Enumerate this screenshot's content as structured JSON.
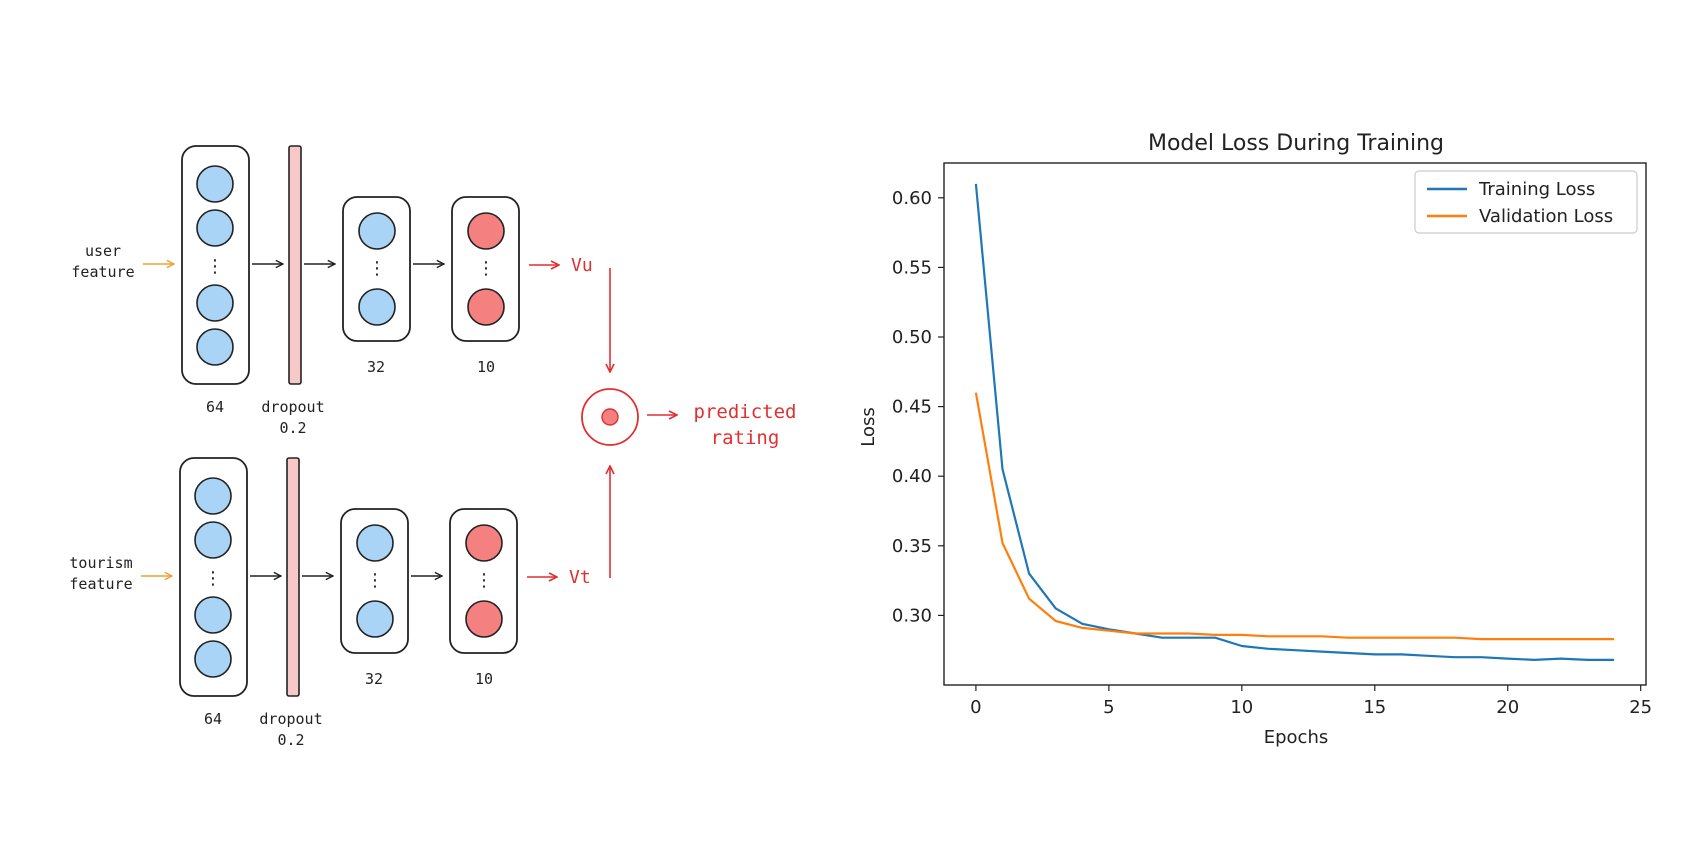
{
  "diagram": {
    "user_branch": {
      "input_label_line1": "user",
      "input_label_line2": "feature",
      "layer1_size": "64",
      "dropout_line1": "dropout",
      "dropout_line2": "0.2",
      "layer2_size": "32",
      "layer3_size": "10",
      "output_vector": "Vu"
    },
    "tourism_branch": {
      "input_label_line1": "tourism",
      "input_label_line2": "feature",
      "layer1_size": "64",
      "dropout_line1": "dropout",
      "dropout_line2": "0.2",
      "layer2_size": "32",
      "layer3_size": "10",
      "output_vector": "Vt"
    },
    "output_line1": "predicted",
    "output_line2": "rating",
    "colors": {
      "input_arrow": "#f0a030",
      "output_red": "#e03030",
      "node_blue": "#a9d4f5",
      "node_red": "#f58080",
      "dropout_fill": "#f7c8c8"
    }
  },
  "chart_data": {
    "type": "line",
    "title": "Model Loss During Training",
    "xlabel": "Epochs",
    "ylabel": "Loss",
    "xlim": [
      -1.2,
      25.2
    ],
    "ylim": [
      0.25,
      0.625
    ],
    "xticks": [
      0,
      5,
      10,
      15,
      20,
      25
    ],
    "yticks": [
      0.3,
      0.35,
      0.4,
      0.45,
      0.5,
      0.55,
      0.6
    ],
    "ytick_labels": [
      "0.30",
      "0.35",
      "0.40",
      "0.45",
      "0.50",
      "0.55",
      "0.60"
    ],
    "legend_position": "top-right",
    "grid": false,
    "x": [
      0,
      1,
      2,
      3,
      4,
      5,
      6,
      7,
      8,
      9,
      10,
      11,
      12,
      13,
      14,
      15,
      16,
      17,
      18,
      19,
      20,
      21,
      22,
      23,
      24
    ],
    "series": [
      {
        "name": "Training Loss",
        "color": "#1f77b4",
        "values": [
          0.61,
          0.405,
          0.33,
          0.305,
          0.294,
          0.29,
          0.287,
          0.284,
          0.284,
          0.284,
          0.278,
          0.276,
          0.275,
          0.274,
          0.273,
          0.272,
          0.272,
          0.271,
          0.27,
          0.27,
          0.269,
          0.268,
          0.269,
          0.268,
          0.268
        ]
      },
      {
        "name": "Validation Loss",
        "color": "#ff7f0e",
        "values": [
          0.46,
          0.352,
          0.312,
          0.296,
          0.291,
          0.289,
          0.287,
          0.287,
          0.287,
          0.286,
          0.286,
          0.285,
          0.285,
          0.285,
          0.284,
          0.284,
          0.284,
          0.284,
          0.284,
          0.283,
          0.283,
          0.283,
          0.283,
          0.283,
          0.283
        ]
      }
    ]
  }
}
